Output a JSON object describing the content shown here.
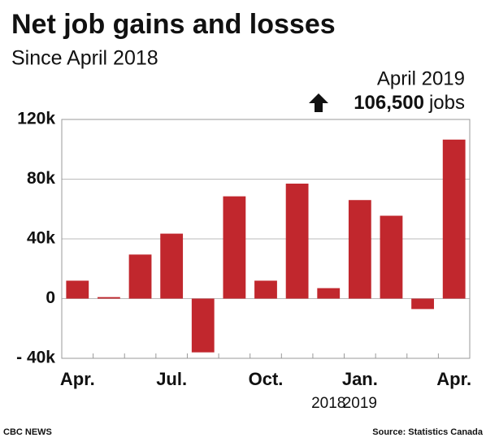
{
  "chart_data": {
    "type": "bar",
    "title": "Net job gains and losses",
    "subtitle": "Since April 2018",
    "annotation": {
      "title": "April 2019",
      "value_label": "106,500",
      "unit": "jobs"
    },
    "categories": [
      "Apr.",
      null,
      null,
      "Jul.",
      null,
      null,
      "Oct.",
      null,
      null,
      "Jan.",
      null,
      null,
      "Apr."
    ],
    "x_sublabels": [
      null,
      null,
      null,
      null,
      null,
      null,
      null,
      null,
      "2018",
      "2019",
      null,
      null,
      null
    ],
    "values": [
      12000,
      1000,
      29500,
      43500,
      -36000,
      68500,
      12000,
      77000,
      7000,
      66000,
      55500,
      -7000,
      106500
    ],
    "color": "#c1272d",
    "ylim": [
      -40000,
      120000
    ],
    "yticks": [
      {
        "value": -40000,
        "label": "- 40k"
      },
      {
        "value": 0,
        "label": "0"
      },
      {
        "value": 40000,
        "label": "40k"
      },
      {
        "value": 80000,
        "label": "80k"
      },
      {
        "value": 120000,
        "label": "120k"
      }
    ],
    "grid": true,
    "credit": "CBC NEWS",
    "source": "Source: Statistics Canada"
  }
}
